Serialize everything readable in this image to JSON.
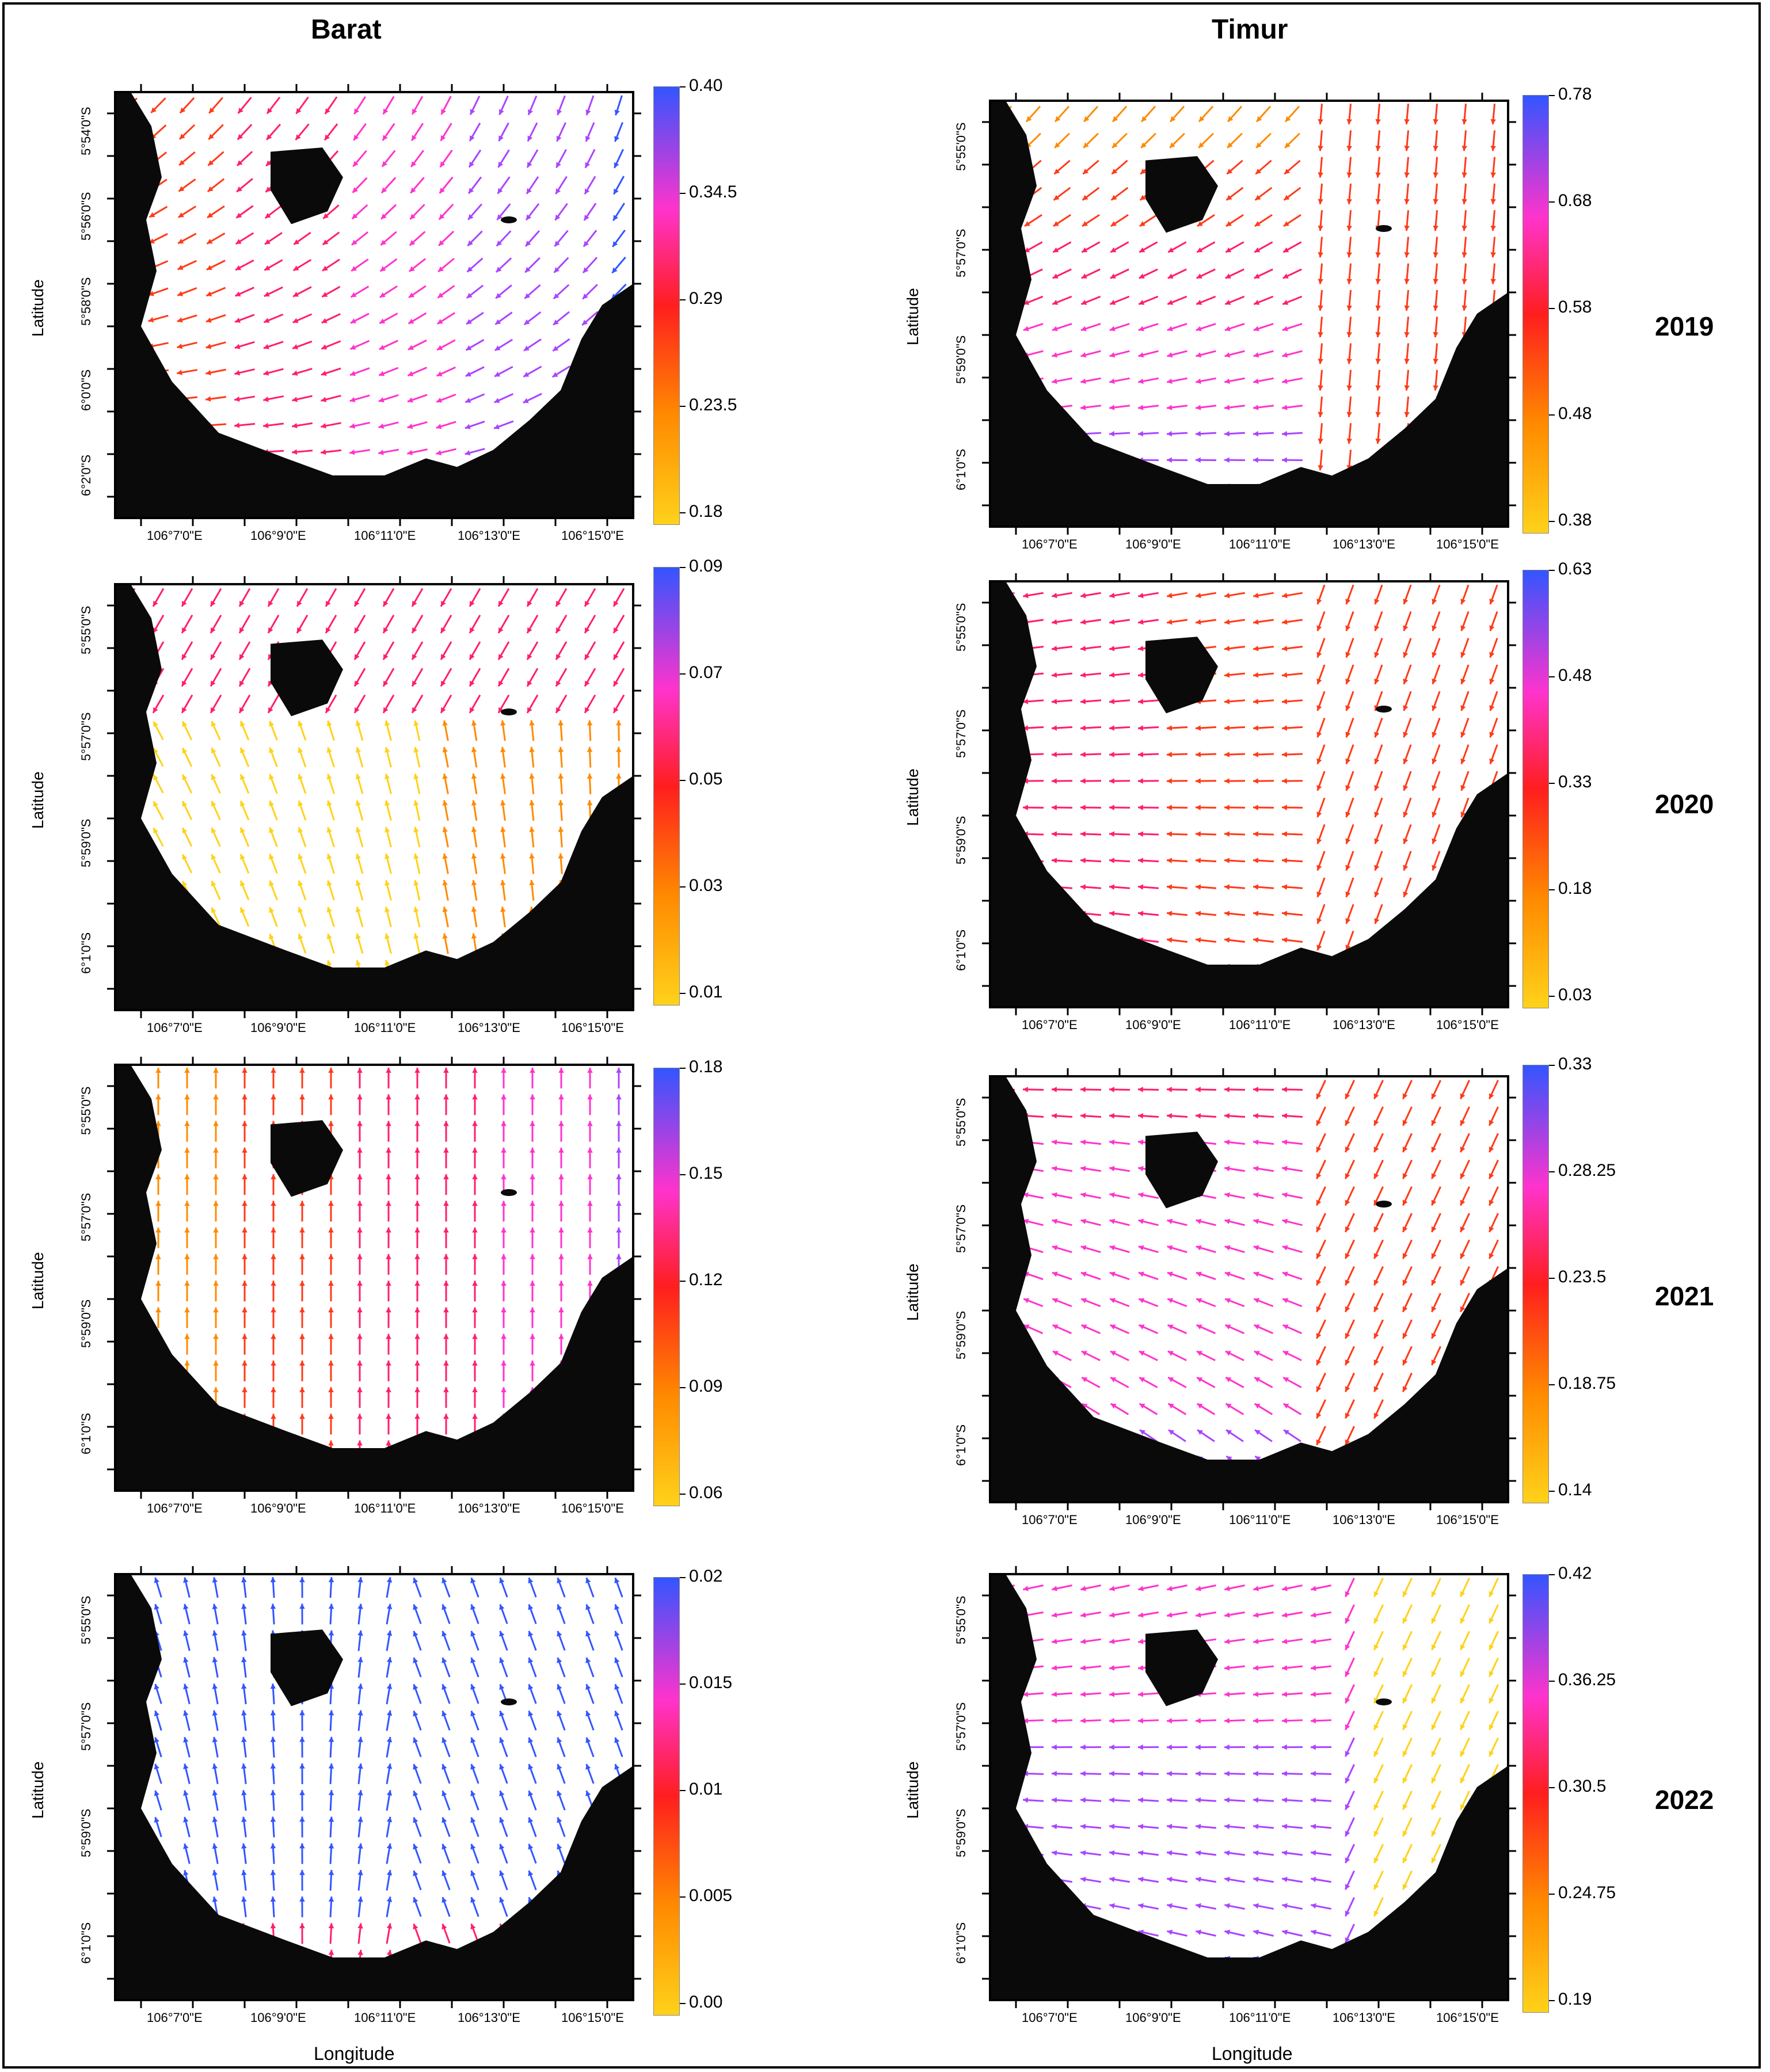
{
  "columns": {
    "left": "Barat",
    "right": "Timur"
  },
  "axis": {
    "ylabel": "Latitude",
    "xlabel": "Longitude"
  },
  "lon_ticks": [
    "106°7'0\"E",
    "106°9'0\"E",
    "106°11'0\"E",
    "106°13'0\"E",
    "106°15'0\"E"
  ],
  "years": [
    "2019",
    "2020",
    "2021",
    "2022"
  ],
  "panels": [
    {
      "id": "barat-2019",
      "lat_ticks": [
        "5°54'0\"S",
        "5°56'0\"S",
        "5°58'0\"S",
        "6°0'0\"S",
        "6°2'0\"S"
      ],
      "colorbar": [
        "0.40",
        "0.34.5",
        "0.29",
        "0.23.5",
        "0.18"
      ],
      "mode": "barat2019"
    },
    {
      "id": "timur-2019",
      "lat_ticks": [
        "5°55'0\"S",
        "5°57'0\"S",
        "5°59'0\"S",
        "6°1'0\"S"
      ],
      "colorbar": [
        "0.78",
        "0.68",
        "0.58",
        "0.48",
        "0.38"
      ],
      "mode": "timur2019"
    },
    {
      "id": "barat-2020",
      "lat_ticks": [
        "5°55'0\"S",
        "5°57'0\"S",
        "5°59'0\"S",
        "6°1'0\"S"
      ],
      "colorbar": [
        "0.09",
        "0.07",
        "0.05",
        "0.03",
        "0.01"
      ],
      "mode": "barat2020"
    },
    {
      "id": "timur-2020",
      "lat_ticks": [
        "5°55'0\"S",
        "5°57'0\"S",
        "5°59'0\"S",
        "6°1'0\"S"
      ],
      "colorbar": [
        "0.63",
        "0.48",
        "0.33",
        "0.18",
        "0.03"
      ],
      "mode": "timur2020"
    },
    {
      "id": "barat-2021",
      "lat_ticks": [
        "5°55'0\"S",
        "5°57'0\"S",
        "5°59'0\"S",
        "6°1'0\"S"
      ],
      "colorbar": [
        "0.18",
        "0.15",
        "0.12",
        "0.09",
        "0.06"
      ],
      "mode": "barat2021"
    },
    {
      "id": "timur-2021",
      "lat_ticks": [
        "5°55'0\"S",
        "5°57'0\"S",
        "5°59'0\"S",
        "6°1'0\"S"
      ],
      "colorbar": [
        "0.33",
        "0.28.25",
        "0.23.5",
        "0.18.75",
        "0.14"
      ],
      "mode": "timur2021"
    },
    {
      "id": "barat-2022",
      "lat_ticks": [
        "5°55'0\"S",
        "5°57'0\"S",
        "5°59'0\"S",
        "6°1'0\"S"
      ],
      "colorbar": [
        "0.02",
        "0.015",
        "0.01",
        "0.005",
        "0.00"
      ],
      "mode": "barat2022"
    },
    {
      "id": "timur-2022",
      "lat_ticks": [
        "5°55'0\"S",
        "5°57'0\"S",
        "5°59'0\"S",
        "6°1'0\"S"
      ],
      "colorbar": [
        "0.42",
        "0.36.25",
        "0.30.5",
        "0.24.75",
        "0.19"
      ],
      "mode": "timur2022"
    }
  ],
  "colors": {
    "low": "#ffd21a",
    "mid": "#ff1e1e",
    "high": "#3355ff",
    "land": "#0a0a0a"
  }
}
